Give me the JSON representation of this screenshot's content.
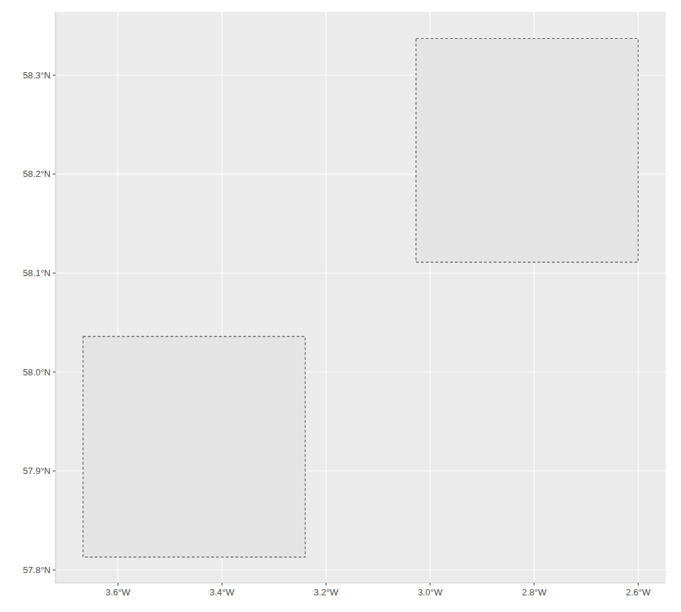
{
  "chart_data": {
    "type": "rect",
    "rects": [
      {
        "xmin": -3.667,
        "xmax": -3.24,
        "ymin": 57.813,
        "ymax": 58.036
      },
      {
        "xmin": -3.027,
        "xmax": -2.6,
        "ymin": 58.111,
        "ymax": 58.337
      }
    ],
    "color": "#e4e4e4",
    "line_style": "dashed",
    "grid": true,
    "xlim": [
      -3.72,
      -2.547
    ],
    "ylim": [
      57.787,
      58.364
    ],
    "xticks": [
      {
        "value": -3.6,
        "label": "3.6°W"
      },
      {
        "value": -3.4,
        "label": "3.4°W"
      },
      {
        "value": -3.2,
        "label": "3.2°W"
      },
      {
        "value": -3.0,
        "label": "3.0°W"
      },
      {
        "value": -2.8,
        "label": "2.8°W"
      },
      {
        "value": -2.6,
        "label": "2.6°W"
      }
    ],
    "yticks": [
      {
        "value": 57.8,
        "label": "57.8°N"
      },
      {
        "value": 57.9,
        "label": "57.9°N"
      },
      {
        "value": 58.0,
        "label": "58.0°N"
      },
      {
        "value": 58.1,
        "label": "58.1°N"
      },
      {
        "value": 58.2,
        "label": "58.2°N"
      },
      {
        "value": 58.3,
        "label": "58.3°N"
      }
    ]
  }
}
